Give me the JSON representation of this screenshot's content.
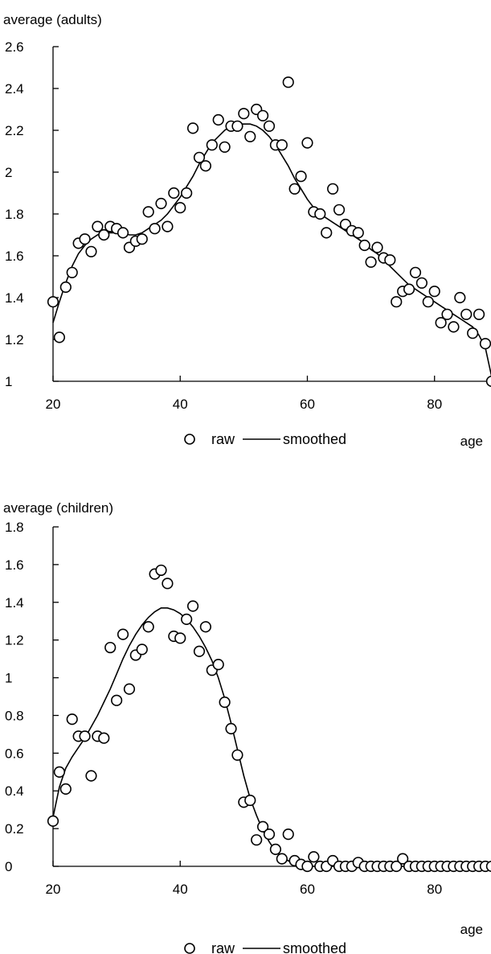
{
  "chart_data": [
    {
      "type": "scatter",
      "ylabel": "average (adults)",
      "xlabel": "age",
      "xlim": [
        20,
        88
      ],
      "ylim": [
        1,
        2.6
      ],
      "x_ticks": [
        20,
        40,
        60,
        80
      ],
      "y_ticks": [
        1,
        1.2,
        1.4,
        1.6,
        1.8,
        2,
        2.2,
        2.4,
        2.6
      ],
      "legend": {
        "placement": "bottom-center",
        "entries": [
          "raw",
          "smoothed"
        ]
      },
      "series": [
        {
          "name": "raw",
          "style": "open-circle",
          "points": [
            [
              20,
              1.38
            ],
            [
              21,
              1.21
            ],
            [
              22,
              1.45
            ],
            [
              23,
              1.52
            ],
            [
              24,
              1.66
            ],
            [
              25,
              1.68
            ],
            [
              26,
              1.62
            ],
            [
              27,
              1.74
            ],
            [
              28,
              1.7
            ],
            [
              29,
              1.74
            ],
            [
              30,
              1.73
            ],
            [
              31,
              1.71
            ],
            [
              32,
              1.64
            ],
            [
              33,
              1.67
            ],
            [
              34,
              1.68
            ],
            [
              35,
              1.81
            ],
            [
              36,
              1.73
            ],
            [
              37,
              1.85
            ],
            [
              38,
              1.74
            ],
            [
              39,
              1.9
            ],
            [
              40,
              1.83
            ],
            [
              41,
              1.9
            ],
            [
              42,
              2.21
            ],
            [
              43,
              2.07
            ],
            [
              44,
              2.03
            ],
            [
              45,
              2.13
            ],
            [
              46,
              2.25
            ],
            [
              47,
              2.12
            ],
            [
              48,
              2.22
            ],
            [
              49,
              2.22
            ],
            [
              50,
              2.28
            ],
            [
              51,
              2.17
            ],
            [
              52,
              2.3
            ],
            [
              53,
              2.27
            ],
            [
              54,
              2.22
            ],
            [
              55,
              2.13
            ],
            [
              56,
              2.13
            ],
            [
              57,
              2.43
            ],
            [
              58,
              1.92
            ],
            [
              59,
              1.98
            ],
            [
              60,
              2.14
            ],
            [
              61,
              1.81
            ],
            [
              62,
              1.8
            ],
            [
              63,
              1.71
            ],
            [
              64,
              1.92
            ],
            [
              65,
              1.82
            ],
            [
              66,
              1.75
            ],
            [
              67,
              1.72
            ],
            [
              68,
              1.71
            ],
            [
              69,
              1.65
            ],
            [
              70,
              1.57
            ],
            [
              71,
              1.64
            ],
            [
              72,
              1.59
            ],
            [
              73,
              1.58
            ],
            [
              74,
              1.38
            ],
            [
              75,
              1.43
            ],
            [
              76,
              1.44
            ],
            [
              77,
              1.52
            ],
            [
              78,
              1.47
            ],
            [
              79,
              1.38
            ],
            [
              80,
              1.43
            ],
            [
              81,
              1.28
            ],
            [
              82,
              1.32
            ],
            [
              83,
              1.26
            ],
            [
              84,
              1.4
            ],
            [
              85,
              1.32
            ],
            [
              86,
              1.23
            ],
            [
              87,
              1.32
            ],
            [
              88,
              1.18
            ],
            [
              89,
              1.0
            ]
          ]
        },
        {
          "name": "smoothed",
          "style": "line",
          "points": [
            [
              20,
              1.28
            ],
            [
              21,
              1.38
            ],
            [
              22,
              1.47
            ],
            [
              23,
              1.55
            ],
            [
              24,
              1.61
            ],
            [
              25,
              1.65
            ],
            [
              26,
              1.68
            ],
            [
              27,
              1.7
            ],
            [
              28,
              1.71
            ],
            [
              29,
              1.71
            ],
            [
              30,
              1.71
            ],
            [
              31,
              1.71
            ],
            [
              32,
              1.7
            ],
            [
              33,
              1.7
            ],
            [
              34,
              1.71
            ],
            [
              35,
              1.73
            ],
            [
              36,
              1.75
            ],
            [
              37,
              1.77
            ],
            [
              38,
              1.8
            ],
            [
              39,
              1.84
            ],
            [
              40,
              1.88
            ],
            [
              41,
              1.93
            ],
            [
              42,
              1.98
            ],
            [
              43,
              2.04
            ],
            [
              44,
              2.09
            ],
            [
              45,
              2.14
            ],
            [
              46,
              2.17
            ],
            [
              47,
              2.2
            ],
            [
              48,
              2.22
            ],
            [
              49,
              2.23
            ],
            [
              50,
              2.23
            ],
            [
              51,
              2.23
            ],
            [
              52,
              2.22
            ],
            [
              53,
              2.2
            ],
            [
              54,
              2.17
            ],
            [
              55,
              2.13
            ],
            [
              56,
              2.08
            ],
            [
              57,
              2.03
            ],
            [
              58,
              1.97
            ],
            [
              59,
              1.92
            ],
            [
              60,
              1.87
            ],
            [
              61,
              1.83
            ],
            [
              62,
              1.8
            ],
            [
              63,
              1.78
            ],
            [
              64,
              1.76
            ],
            [
              65,
              1.74
            ],
            [
              66,
              1.72
            ],
            [
              67,
              1.7
            ],
            [
              68,
              1.68
            ],
            [
              69,
              1.66
            ],
            [
              70,
              1.63
            ],
            [
              71,
              1.61
            ],
            [
              72,
              1.58
            ],
            [
              73,
              1.55
            ],
            [
              74,
              1.52
            ],
            [
              75,
              1.49
            ],
            [
              76,
              1.46
            ],
            [
              77,
              1.44
            ],
            [
              78,
              1.42
            ],
            [
              79,
              1.4
            ],
            [
              80,
              1.38
            ],
            [
              81,
              1.36
            ],
            [
              82,
              1.34
            ],
            [
              83,
              1.32
            ],
            [
              84,
              1.3
            ],
            [
              85,
              1.28
            ],
            [
              86,
              1.26
            ],
            [
              87,
              1.22
            ],
            [
              88,
              1.16
            ],
            [
              89,
              1.02
            ]
          ]
        }
      ]
    },
    {
      "type": "scatter",
      "ylabel": "average (children)",
      "xlabel": "age",
      "xlim": [
        20,
        88
      ],
      "ylim": [
        0,
        1.8
      ],
      "x_ticks": [
        20,
        40,
        60,
        80
      ],
      "y_ticks": [
        0,
        0.2,
        0.4,
        0.6,
        0.8,
        1,
        1.2,
        1.4,
        1.6,
        1.8
      ],
      "legend": {
        "placement": "bottom-center",
        "entries": [
          "raw",
          "smoothed"
        ]
      },
      "series": [
        {
          "name": "raw",
          "style": "open-circle",
          "points": [
            [
              20,
              0.24
            ],
            [
              21,
              0.5
            ],
            [
              22,
              0.41
            ],
            [
              23,
              0.78
            ],
            [
              24,
              0.69
            ],
            [
              25,
              0.69
            ],
            [
              26,
              0.48
            ],
            [
              27,
              0.69
            ],
            [
              28,
              0.68
            ],
            [
              29,
              1.16
            ],
            [
              30,
              0.88
            ],
            [
              31,
              1.23
            ],
            [
              32,
              0.94
            ],
            [
              33,
              1.12
            ],
            [
              34,
              1.15
            ],
            [
              35,
              1.27
            ],
            [
              36,
              1.55
            ],
            [
              37,
              1.57
            ],
            [
              38,
              1.5
            ],
            [
              39,
              1.22
            ],
            [
              40,
              1.21
            ],
            [
              41,
              1.31
            ],
            [
              42,
              1.38
            ],
            [
              43,
              1.14
            ],
            [
              44,
              1.27
            ],
            [
              45,
              1.04
            ],
            [
              46,
              1.07
            ],
            [
              47,
              0.87
            ],
            [
              48,
              0.73
            ],
            [
              49,
              0.59
            ],
            [
              50,
              0.34
            ],
            [
              51,
              0.35
            ],
            [
              52,
              0.14
            ],
            [
              53,
              0.21
            ],
            [
              54,
              0.17
            ],
            [
              55,
              0.09
            ],
            [
              56,
              0.04
            ],
            [
              57,
              0.17
            ],
            [
              58,
              0.03
            ],
            [
              59,
              0.01
            ],
            [
              60,
              0.0
            ],
            [
              61,
              0.05
            ],
            [
              62,
              0.0
            ],
            [
              63,
              0.0
            ],
            [
              64,
              0.03
            ],
            [
              65,
              0.0
            ],
            [
              66,
              0.0
            ],
            [
              67,
              0.0
            ],
            [
              68,
              0.02
            ],
            [
              69,
              0.0
            ],
            [
              70,
              0.0
            ],
            [
              71,
              0.0
            ],
            [
              72,
              0.0
            ],
            [
              73,
              0.0
            ],
            [
              74,
              0.0
            ],
            [
              75,
              0.04
            ],
            [
              76,
              0.0
            ],
            [
              77,
              0.0
            ],
            [
              78,
              0.0
            ],
            [
              79,
              0.0
            ],
            [
              80,
              0.0
            ],
            [
              81,
              0.0
            ],
            [
              82,
              0.0
            ],
            [
              83,
              0.0
            ],
            [
              84,
              0.0
            ],
            [
              85,
              0.0
            ],
            [
              86,
              0.0
            ],
            [
              87,
              0.0
            ],
            [
              88,
              0.0
            ],
            [
              89,
              0.0
            ]
          ]
        },
        {
          "name": "smoothed",
          "style": "line",
          "points": [
            [
              20,
              0.26
            ],
            [
              21,
              0.42
            ],
            [
              22,
              0.52
            ],
            [
              23,
              0.58
            ],
            [
              24,
              0.63
            ],
            [
              25,
              0.68
            ],
            [
              26,
              0.74
            ],
            [
              27,
              0.8
            ],
            [
              28,
              0.87
            ],
            [
              29,
              0.94
            ],
            [
              30,
              1.02
            ],
            [
              31,
              1.1
            ],
            [
              32,
              1.17
            ],
            [
              33,
              1.23
            ],
            [
              34,
              1.28
            ],
            [
              35,
              1.32
            ],
            [
              36,
              1.35
            ],
            [
              37,
              1.37
            ],
            [
              38,
              1.37
            ],
            [
              39,
              1.36
            ],
            [
              40,
              1.34
            ],
            [
              41,
              1.31
            ],
            [
              42,
              1.27
            ],
            [
              43,
              1.22
            ],
            [
              44,
              1.16
            ],
            [
              45,
              1.09
            ],
            [
              46,
              1.0
            ],
            [
              47,
              0.89
            ],
            [
              48,
              0.76
            ],
            [
              49,
              0.62
            ],
            [
              50,
              0.48
            ],
            [
              51,
              0.36
            ],
            [
              52,
              0.27
            ],
            [
              53,
              0.19
            ],
            [
              54,
              0.13
            ],
            [
              55,
              0.08
            ],
            [
              56,
              0.05
            ],
            [
              57,
              0.03
            ],
            [
              58,
              0.01
            ],
            [
              59,
              0.0
            ],
            [
              60,
              0.0
            ],
            [
              65,
              0.0
            ],
            [
              70,
              0.0
            ],
            [
              75,
              0.0
            ],
            [
              80,
              0.0
            ],
            [
              85,
              0.0
            ],
            [
              89,
              0.0
            ]
          ]
        }
      ]
    }
  ]
}
